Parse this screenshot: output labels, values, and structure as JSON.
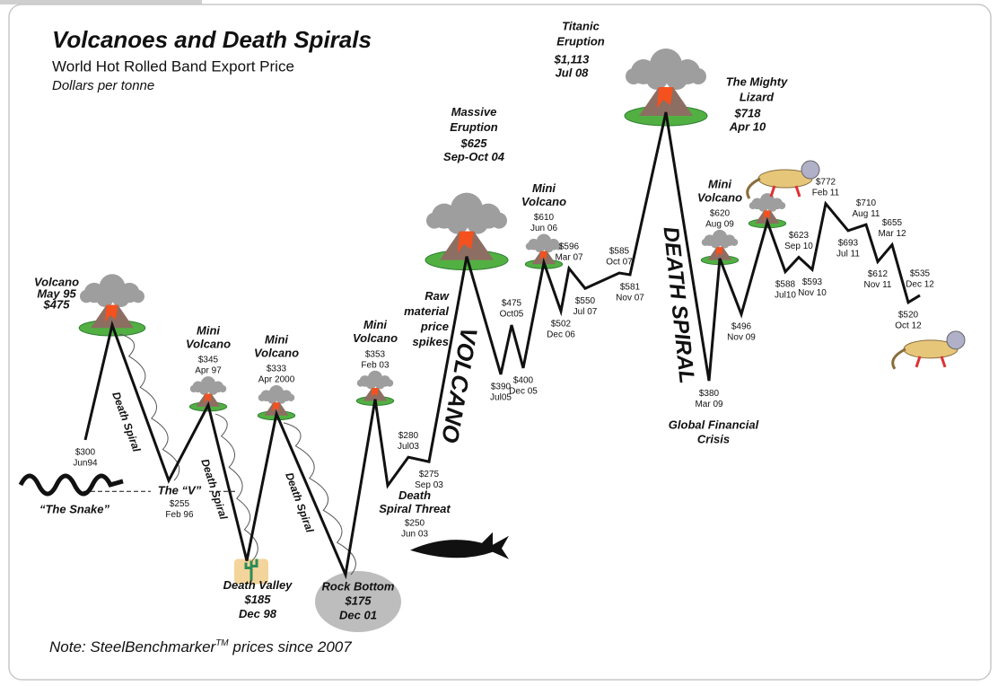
{
  "chart_data": {
    "type": "line",
    "title": "Volcanoes and Death Spirals",
    "subtitle": "World Hot Rolled Band Export Price",
    "y_label": "Dollars per tonne",
    "color": "#111111",
    "categories": [
      "Jun94",
      "May 95",
      "Feb 96",
      "Apr 97",
      "Dec 98",
      "Apr 2000",
      "Dec 01",
      "Feb 03",
      "Jun 03",
      "Jul03",
      "Sep 03",
      "Sep-Oct 04",
      "Jul05",
      "Oct05",
      "Dec 05",
      "Jun 06",
      "Dec 06",
      "Mar 07",
      "Jul 07",
      "Oct 07",
      "Nov 07",
      "Jul 08",
      "Mar 09",
      "Aug 09",
      "Nov 09",
      "Apr 10",
      "Jul10",
      "Sep 10",
      "Nov 10",
      "Feb 11",
      "Jul 11",
      "Aug 11",
      "Nov 11",
      "Mar 12",
      "Oct 12",
      "Dec 12"
    ],
    "values": [
      300,
      475,
      255,
      345,
      185,
      333,
      175,
      353,
      250,
      280,
      275,
      625,
      390,
      475,
      400,
      610,
      502,
      596,
      550,
      585,
      581,
      1113,
      380,
      620,
      496,
      718,
      588,
      623,
      593,
      772,
      693,
      710,
      612,
      655,
      520,
      535
    ],
    "value_labels": [
      "$300",
      "$475",
      "$255",
      "$345",
      "$185",
      "$333",
      "$175",
      "$353",
      "$250",
      "$280",
      "$275",
      "$625",
      "$390",
      "$475",
      "$400",
      "$610",
      "$502",
      "$596",
      "$550",
      "$585",
      "$581",
      "$1,113",
      "$380",
      "$620",
      "$496",
      "$718",
      "$588",
      "$623",
      "$593",
      "$772",
      "$693",
      "$710",
      "$612",
      "$655",
      "$520",
      "$535"
    ],
    "annotations": [
      "Volcano",
      "Mini",
      "Volcano",
      "Mini",
      "Volcano",
      "Mini",
      "Volcano",
      "Massive",
      "Eruption",
      "Mini",
      "Volcano",
      "Titanic",
      "Eruption",
      "The Mighty",
      "Lizard",
      "Mini",
      "Volcano",
      "“The Snake”",
      "The “V”",
      "Death Valley",
      "Rock Bottom",
      "Death",
      "Spiral Threat",
      "Raw",
      "material",
      "price",
      "spikes",
      "VOLCANO",
      "Global Financial",
      "Crisis",
      "DEATH SPIRAL",
      "Death Spiral",
      "Death Spiral",
      "Death Spiral"
    ],
    "note": [
      "Note: SteelBenchmarker",
      "TM",
      " prices since 2007"
    ]
  }
}
